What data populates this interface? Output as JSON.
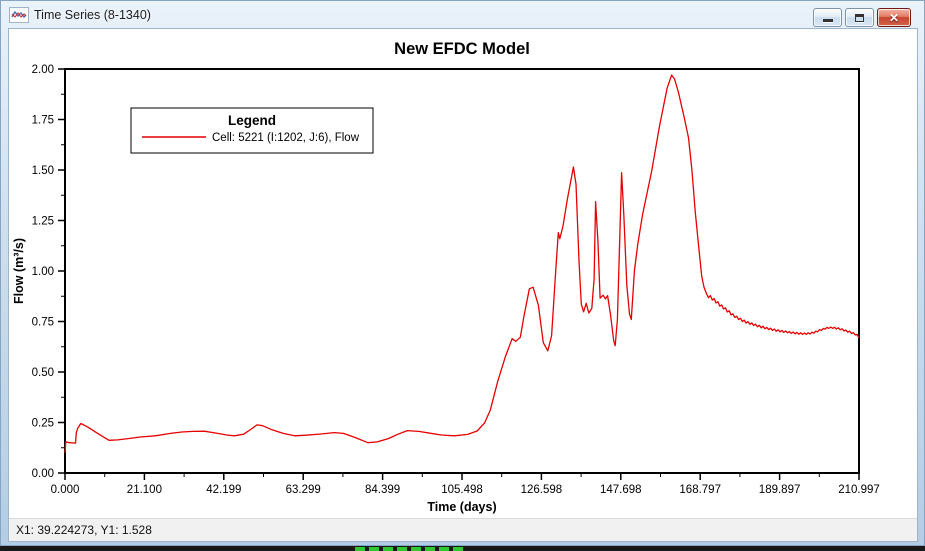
{
  "window": {
    "title": "Time Series (8-1340)",
    "icons": {
      "app": "line-chart-icon",
      "minimize": "minimize-icon",
      "restore": "restore-icon",
      "close": "close-icon"
    }
  },
  "statusbar": {
    "text": "X1: 39.224273, Y1: 1.528"
  },
  "taskbar": {
    "indicator_color": "#2ec72e",
    "segments": 8
  },
  "chart_data": {
    "type": "line",
    "title": "New EFDC Model",
    "xlabel": "Time (days)",
    "ylabel": "Flow (m³/s)",
    "xlim": [
      0,
      210.997
    ],
    "ylim": [
      0,
      2.0
    ],
    "x_tick_labels": [
      "0.000",
      "21.100",
      "42.199",
      "63.299",
      "84.399",
      "105.498",
      "126.598",
      "147.698",
      "168.797",
      "189.897",
      "210.997"
    ],
    "y_tick_labels": [
      "0.00",
      "0.25",
      "0.50",
      "0.75",
      "1.00",
      "1.25",
      "1.50",
      "1.75",
      "2.00"
    ],
    "minor_ticks_per_interval": 1,
    "grid": false,
    "legend": {
      "title": "Legend",
      "position": "upper-left",
      "entries": [
        {
          "label": "Cell: 5221 (I:1202, J:6), Flow",
          "color": "#e60000"
        }
      ]
    },
    "series": [
      {
        "name": "Cell: 5221 (I:1202, J:6), Flow",
        "color": "#e60000",
        "points": [
          [
            0,
            0.1
          ],
          [
            0.2,
            0.155
          ],
          [
            1.2,
            0.15
          ],
          [
            2.8,
            0.148
          ],
          [
            3.0,
            0.2
          ],
          [
            3.4,
            0.222
          ],
          [
            4.2,
            0.245
          ],
          [
            6,
            0.228
          ],
          [
            9,
            0.192
          ],
          [
            11.7,
            0.162
          ],
          [
            14,
            0.164
          ],
          [
            17,
            0.171
          ],
          [
            20,
            0.178
          ],
          [
            24,
            0.184
          ],
          [
            28,
            0.196
          ],
          [
            31,
            0.203
          ],
          [
            34,
            0.206
          ],
          [
            37,
            0.207
          ],
          [
            40,
            0.198
          ],
          [
            43,
            0.188
          ],
          [
            45,
            0.184
          ],
          [
            47.5,
            0.192
          ],
          [
            49.5,
            0.218
          ],
          [
            51,
            0.238
          ],
          [
            52.5,
            0.234
          ],
          [
            55,
            0.214
          ],
          [
            58,
            0.196
          ],
          [
            61,
            0.184
          ],
          [
            64,
            0.187
          ],
          [
            68,
            0.193
          ],
          [
            71.5,
            0.2
          ],
          [
            74,
            0.196
          ],
          [
            77,
            0.176
          ],
          [
            80.5,
            0.15
          ],
          [
            83,
            0.154
          ],
          [
            86,
            0.171
          ],
          [
            88.5,
            0.192
          ],
          [
            91,
            0.21
          ],
          [
            94,
            0.206
          ],
          [
            97,
            0.197
          ],
          [
            100,
            0.188
          ],
          [
            103.5,
            0.184
          ],
          [
            107,
            0.191
          ],
          [
            109.5,
            0.208
          ],
          [
            111.5,
            0.248
          ],
          [
            113,
            0.31
          ],
          [
            115,
            0.455
          ],
          [
            117,
            0.575
          ],
          [
            118.8,
            0.665
          ],
          [
            119.8,
            0.652
          ],
          [
            121,
            0.672
          ],
          [
            122,
            0.78
          ],
          [
            123.4,
            0.912
          ],
          [
            124.4,
            0.92
          ],
          [
            125.8,
            0.83
          ],
          [
            127.1,
            0.645
          ],
          [
            128.3,
            0.605
          ],
          [
            129.3,
            0.68
          ],
          [
            130.4,
            1.0
          ],
          [
            131.1,
            1.19
          ],
          [
            131.5,
            1.16
          ],
          [
            132.3,
            1.22
          ],
          [
            133.4,
            1.345
          ],
          [
            135.1,
            1.515
          ],
          [
            135.8,
            1.43
          ],
          [
            136.6,
            1.05
          ],
          [
            137.2,
            0.836
          ],
          [
            137.8,
            0.798
          ],
          [
            138.5,
            0.84
          ],
          [
            139.2,
            0.792
          ],
          [
            140.0,
            0.815
          ],
          [
            140.6,
            0.96
          ],
          [
            141.0,
            1.343
          ],
          [
            141.6,
            1.15
          ],
          [
            142.2,
            0.866
          ],
          [
            143.0,
            0.88
          ],
          [
            143.6,
            0.862
          ],
          [
            144.2,
            0.878
          ],
          [
            145.0,
            0.78
          ],
          [
            145.8,
            0.655
          ],
          [
            146.2,
            0.63
          ],
          [
            146.8,
            0.76
          ],
          [
            147.4,
            1.15
          ],
          [
            147.9,
            1.487
          ],
          [
            148.5,
            1.28
          ],
          [
            149.3,
            0.93
          ],
          [
            150.0,
            0.787
          ],
          [
            150.5,
            0.76
          ],
          [
            151.3,
            1.0
          ],
          [
            152.2,
            1.13
          ],
          [
            153.5,
            1.28
          ],
          [
            155.9,
            1.495
          ],
          [
            158,
            1.72
          ],
          [
            160,
            1.905
          ],
          [
            161.2,
            1.97
          ],
          [
            162,
            1.95
          ],
          [
            163,
            1.885
          ],
          [
            164.5,
            1.765
          ],
          [
            165.7,
            1.66
          ],
          [
            166.6,
            1.5
          ],
          [
            167.5,
            1.29
          ],
          [
            168.4,
            1.12
          ],
          [
            169.2,
            0.975
          ],
          [
            169.8,
            0.92
          ],
          [
            170.5,
            0.886
          ],
          [
            171,
            0.868
          ],
          [
            171.5,
            0.878
          ],
          [
            172,
            0.856
          ],
          [
            172.5,
            0.864
          ],
          [
            173,
            0.842
          ],
          [
            173.5,
            0.848
          ],
          [
            174,
            0.826
          ],
          [
            174.5,
            0.832
          ],
          [
            175,
            0.812
          ],
          [
            175.5,
            0.818
          ],
          [
            176,
            0.797
          ],
          [
            176.5,
            0.803
          ],
          [
            177,
            0.782
          ],
          [
            177.5,
            0.788
          ],
          [
            178,
            0.77
          ],
          [
            178.5,
            0.776
          ],
          [
            179,
            0.76
          ],
          [
            179.5,
            0.766
          ],
          [
            180,
            0.75
          ],
          [
            180.5,
            0.757
          ],
          [
            181,
            0.742
          ],
          [
            181.5,
            0.749
          ],
          [
            182,
            0.736
          ],
          [
            182.5,
            0.743
          ],
          [
            183,
            0.73
          ],
          [
            183.5,
            0.737
          ],
          [
            184,
            0.724
          ],
          [
            184.5,
            0.731
          ],
          [
            185,
            0.719
          ],
          [
            185.5,
            0.726
          ],
          [
            186,
            0.714
          ],
          [
            186.5,
            0.721
          ],
          [
            187,
            0.71
          ],
          [
            187.5,
            0.717
          ],
          [
            188,
            0.706
          ],
          [
            188.5,
            0.713
          ],
          [
            189,
            0.702
          ],
          [
            189.5,
            0.709
          ],
          [
            190,
            0.699
          ],
          [
            190.5,
            0.706
          ],
          [
            191,
            0.696
          ],
          [
            191.5,
            0.703
          ],
          [
            192,
            0.694
          ],
          [
            192.5,
            0.7
          ],
          [
            193,
            0.691
          ],
          [
            193.5,
            0.698
          ],
          [
            194,
            0.689
          ],
          [
            194.5,
            0.696
          ],
          [
            195,
            0.687
          ],
          [
            195.5,
            0.694
          ],
          [
            196,
            0.686
          ],
          [
            196.5,
            0.693
          ],
          [
            197,
            0.686
          ],
          [
            197.5,
            0.694
          ],
          [
            198,
            0.688
          ],
          [
            198.5,
            0.697
          ],
          [
            199,
            0.692
          ],
          [
            199.5,
            0.702
          ],
          [
            200,
            0.699
          ],
          [
            200.5,
            0.71
          ],
          [
            201,
            0.706
          ],
          [
            201.5,
            0.716
          ],
          [
            202,
            0.712
          ],
          [
            202.5,
            0.721
          ],
          [
            203,
            0.716
          ],
          [
            203.5,
            0.723
          ],
          [
            204,
            0.716
          ],
          [
            204.5,
            0.722
          ],
          [
            205,
            0.713
          ],
          [
            205.5,
            0.719
          ],
          [
            206,
            0.709
          ],
          [
            206.5,
            0.714
          ],
          [
            207,
            0.703
          ],
          [
            207.5,
            0.708
          ],
          [
            208,
            0.697
          ],
          [
            208.5,
            0.702
          ],
          [
            209,
            0.691
          ],
          [
            209.5,
            0.695
          ],
          [
            210,
            0.683
          ],
          [
            210.5,
            0.686
          ],
          [
            211,
            0.668
          ]
        ]
      }
    ]
  }
}
